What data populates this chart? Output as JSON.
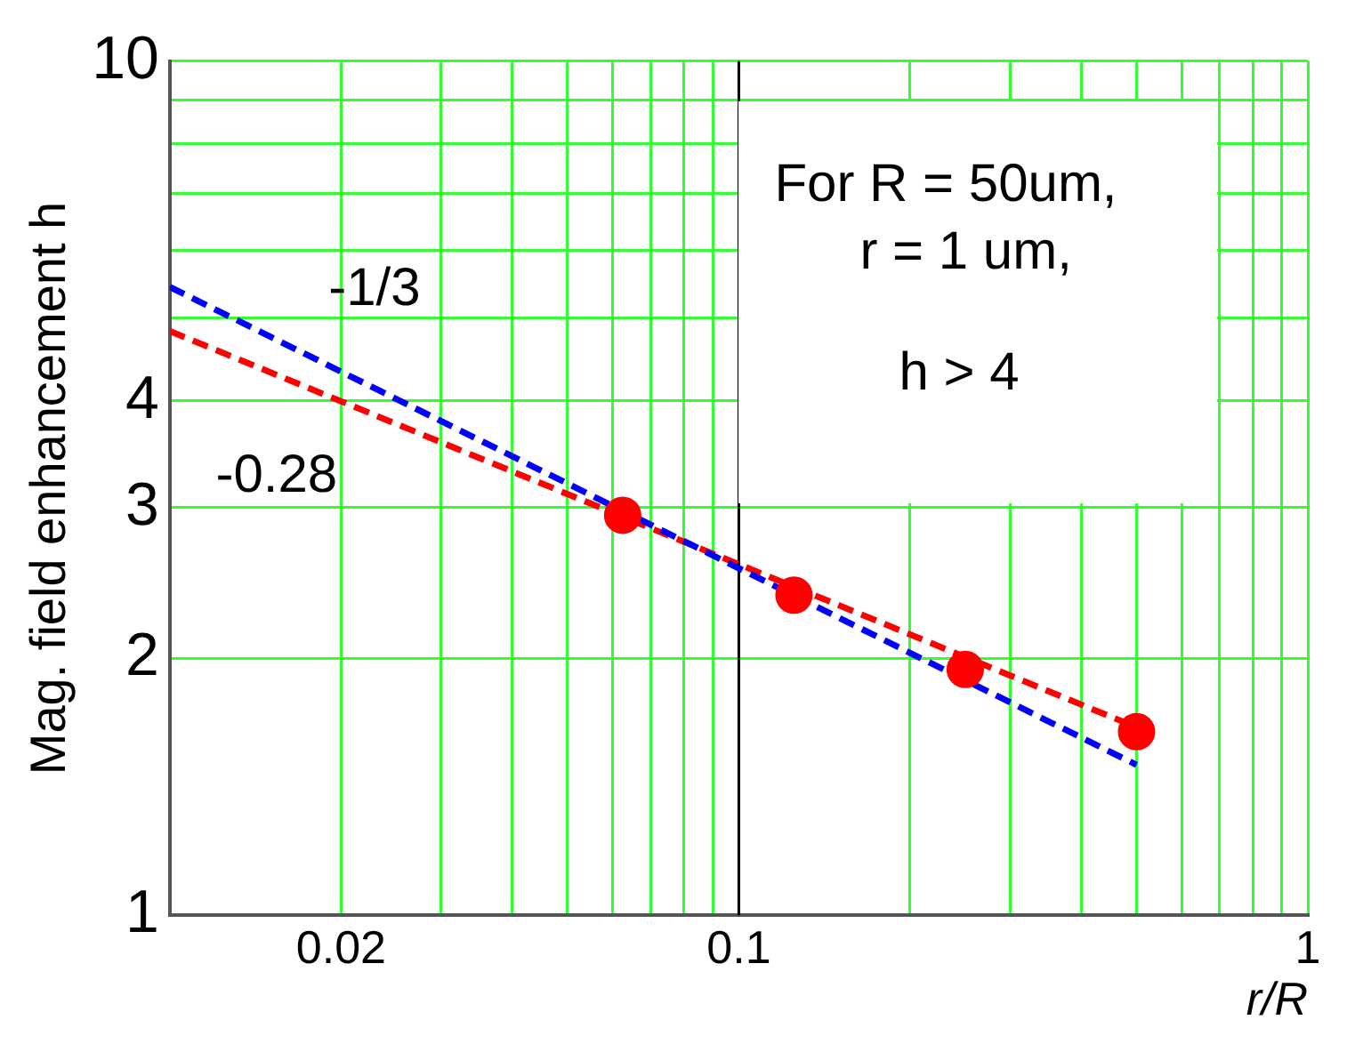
{
  "chart_data": {
    "type": "scatter",
    "xlabel": "r/R",
    "ylabel": "Mag. field enhancement h",
    "annotations": [
      "For R = 50um,",
      "r = 1 um,",
      "h > 4"
    ],
    "series": [
      {
        "type": "line",
        "name": "-1/3",
        "color": "#0000ff",
        "x": [
          0.01,
          0.5
        ],
        "values": [
          5.44,
          1.5
        ],
        "line_style": "dashed",
        "marker": "none"
      },
      {
        "type": "line",
        "name": "-0.28",
        "color": "#ff0000",
        "x": [
          0.01,
          0.5
        ],
        "values": [
          4.83,
          1.66
        ],
        "line_style": "dashed",
        "marker": "none"
      },
      {
        "type": "scatter",
        "color": "#ff0000",
        "x": [
          0.0625,
          0.125,
          0.25,
          0.5
        ],
        "values": [
          2.94,
          2.37,
          1.94,
          1.64
        ],
        "marker": "circle"
      }
    ],
    "log": "xy",
    "grid": true,
    "legend": false,
    "xlim": [
      0.01,
      1
    ],
    "xticks": [
      {
        "value": 0.01,
        "label": null
      },
      0.02,
      {
        "value": 0.03,
        "label": null
      },
      {
        "value": 0.04,
        "label": null
      },
      {
        "value": 0.05,
        "label": null
      },
      {
        "value": 0.06,
        "label": null
      },
      {
        "value": 0.07,
        "label": null
      },
      {
        "value": 0.08,
        "label": null
      },
      {
        "value": 0.09,
        "label": null
      },
      0.1,
      {
        "value": 0.2,
        "label": null
      },
      {
        "value": 0.3,
        "label": null
      },
      {
        "value": 0.4,
        "label": null
      },
      {
        "value": 0.5,
        "label": null
      },
      {
        "value": 0.6,
        "label": null
      },
      {
        "value": 0.7,
        "label": null
      },
      {
        "value": 0.8,
        "label": null
      },
      {
        "value": 0.9,
        "label": null
      },
      1
    ],
    "ylim": [
      1,
      10
    ],
    "yticks": [
      1,
      2,
      3,
      4,
      {
        "value": 5,
        "label": null
      },
      {
        "value": 6,
        "label": null
      },
      {
        "value": 7,
        "label": null
      },
      {
        "value": 8,
        "label": null
      },
      {
        "value": 9,
        "label": null
      },
      10
    ],
    "ref_lines": [
      {
        "axis": "x",
        "value": 0.1,
        "color": "#000000"
      }
    ]
  }
}
